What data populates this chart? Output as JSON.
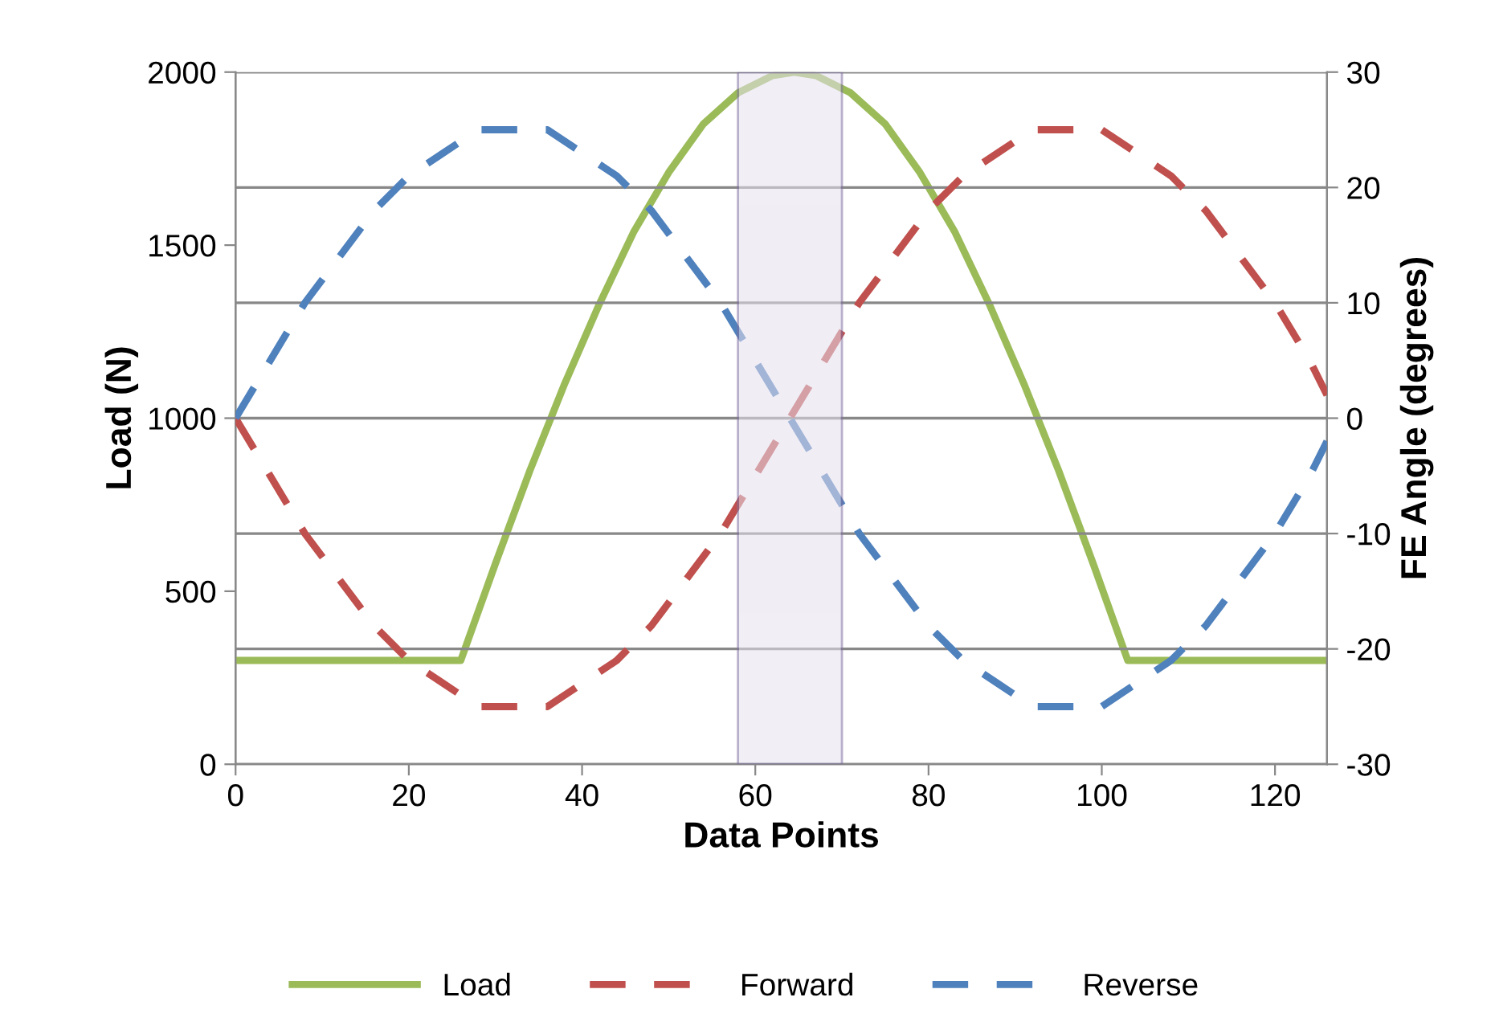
{
  "chart_data": {
    "type": "line",
    "xlabel": "Data Points",
    "ylabel": "Load (N)",
    "y2label": "FE Angle (degrees)",
    "xlim": [
      0,
      126
    ],
    "xticks": [
      0,
      20,
      40,
      60,
      80,
      100,
      120
    ],
    "ylim": [
      0,
      2000
    ],
    "yticks": [
      0,
      500,
      1000,
      1500,
      2000
    ],
    "y2lim": [
      -30,
      30
    ],
    "y2ticks": [
      -30,
      -20,
      -10,
      0,
      10,
      20,
      30
    ],
    "grid": "y",
    "legend": "bottom",
    "line_style": "solid",
    "marker": "none",
    "bands": [
      {
        "axis": "x",
        "from": 58,
        "to": 70,
        "color": "#e6e0ee"
      }
    ],
    "series": [
      {
        "name": "Load",
        "color": "#9bbb59",
        "x": [
          0,
          26,
          30,
          34,
          38,
          42,
          46,
          50,
          54,
          58,
          62,
          64.5,
          67,
          71,
          75,
          79,
          83,
          87,
          91,
          95,
          99,
          103,
          126
        ],
        "values": [
          300,
          300,
          580,
          850,
          1100,
          1330,
          1540,
          1710,
          1850,
          1940,
          1990,
          2000,
          1990,
          1940,
          1850,
          1710,
          1540,
          1330,
          1100,
          850,
          580,
          300,
          300
        ]
      },
      {
        "name": "Forward",
        "color": "#c0504d",
        "axis": "y2",
        "line_style": "dashed",
        "x": [
          0,
          4,
          8,
          12,
          16,
          20,
          24,
          28,
          32,
          36,
          40,
          44,
          48,
          52,
          56,
          60,
          64,
          68,
          72,
          76,
          80,
          84,
          88,
          92,
          96,
          100,
          104,
          108,
          112,
          116,
          120,
          124,
          126
        ],
        "values": [
          0,
          -5,
          -10,
          -14,
          -18,
          -21,
          -23,
          -25,
          -25,
          -25,
          -23,
          -21,
          -18,
          -14,
          -10,
          -5,
          0,
          5,
          10,
          14,
          18,
          21,
          23,
          25,
          25,
          25,
          23,
          21,
          18,
          14,
          10,
          5,
          2
        ]
      },
      {
        "name": "Reverse",
        "color": "#4f81bd",
        "axis": "y2",
        "line_style": "dashed",
        "x": [
          0,
          4,
          8,
          12,
          16,
          20,
          24,
          28,
          32,
          36,
          40,
          44,
          48,
          52,
          56,
          60,
          64,
          68,
          72,
          76,
          80,
          84,
          88,
          92,
          96,
          100,
          104,
          108,
          112,
          116,
          120,
          124,
          126
        ],
        "values": [
          0,
          5,
          10,
          14,
          18,
          21,
          23,
          25,
          25,
          25,
          23,
          21,
          18,
          14,
          10,
          5,
          0,
          -5,
          -10,
          -14,
          -18,
          -21,
          -23,
          -25,
          -25,
          -25,
          -23,
          -21,
          -18,
          -14,
          -10,
          -5,
          -2
        ]
      }
    ]
  }
}
